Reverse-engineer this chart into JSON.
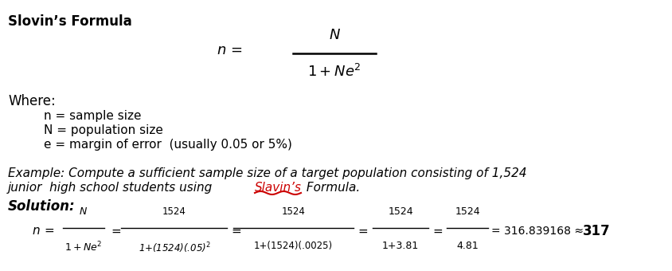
{
  "title": "Slovin’s Formula",
  "bg_color": "#ffffff",
  "text_color": "#000000",
  "red_color": "#cc0000",
  "figsize": [
    8.45,
    3.4
  ],
  "dpi": 100,
  "where_label": "Where:",
  "def1": "n = sample size",
  "def2": "N = population size",
  "def3": "e = margin of error  (usually 0.05 or 5%)",
  "example_line1": "Example: Compute a sufficient sample size of a target population consisting of 1,524",
  "example_line2a": "junior  high school students using ",
  "example_slavins": "Slavin’s",
  "example_line2b": " Formula.",
  "solution_label": "Solution:",
  "approx_text": "= 316.839168 ≈ ",
  "final_value": "317"
}
